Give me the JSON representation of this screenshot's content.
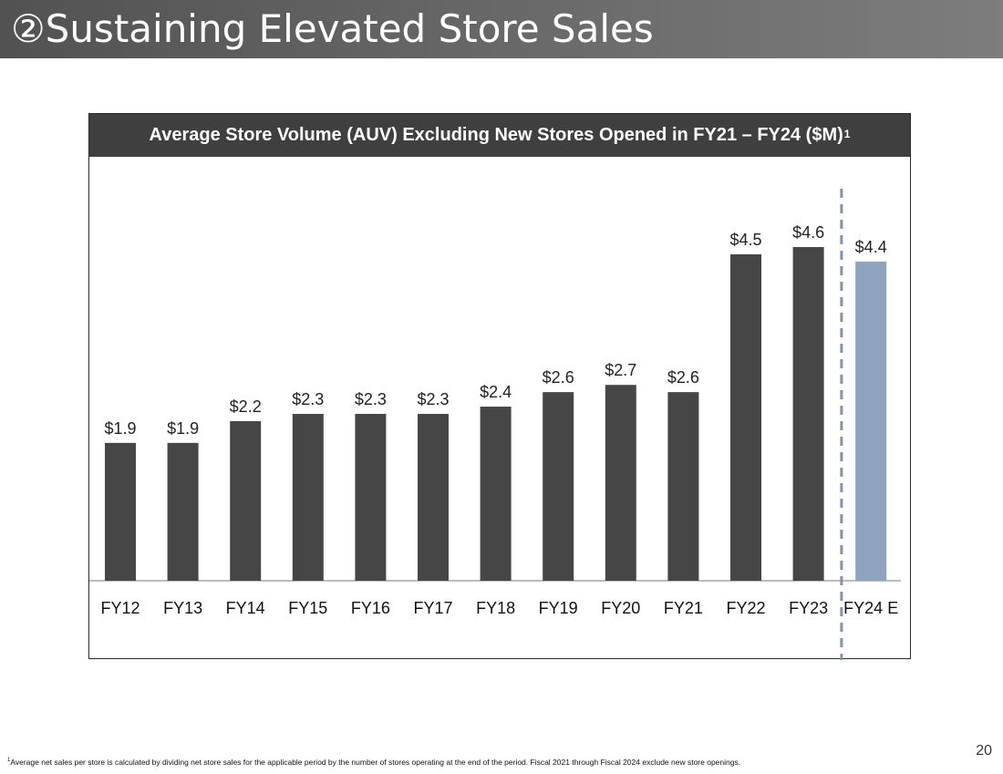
{
  "slide": {
    "number_glyph": "②",
    "title": "Sustaining Elevated Store Sales",
    "footnote_marker": "1",
    "footnote": "Average net sales per store is calculated by dividing net store sales for the applicable period by the number of stores operating at the end of the period. Fiscal 2021 through Fiscal 2024 exclude new store openings.",
    "page_number": "20"
  },
  "chart_data": {
    "type": "bar",
    "title": "Average Store Volume (AUV) Excluding New Stores Opened in FY21 – FY24 ($M)",
    "title_superscript": "1",
    "categories": [
      "FY12",
      "FY13",
      "FY14",
      "FY15",
      "FY16",
      "FY17",
      "FY18",
      "FY19",
      "FY20",
      "FY21",
      "FY22",
      "FY23",
      "FY24 E"
    ],
    "values": [
      1.9,
      1.9,
      2.2,
      2.3,
      2.3,
      2.3,
      2.4,
      2.6,
      2.7,
      2.6,
      4.5,
      4.6,
      4.4
    ],
    "data_labels": [
      "$1.9",
      "$1.9",
      "$2.2",
      "$2.3",
      "$2.3",
      "$2.3",
      "$2.4",
      "$2.6",
      "$2.7",
      "$2.6",
      "$4.5",
      "$4.6",
      "$4.4"
    ],
    "estimate_index": 12,
    "ylim": [
      0,
      4.6
    ],
    "grid": false,
    "colors": {
      "bar": "#464646",
      "estimate_bar": "#8ea3bd",
      "divider": "#7f94a8",
      "axis": "#a6a6a6",
      "header_bg": "#3f3f3f"
    }
  }
}
